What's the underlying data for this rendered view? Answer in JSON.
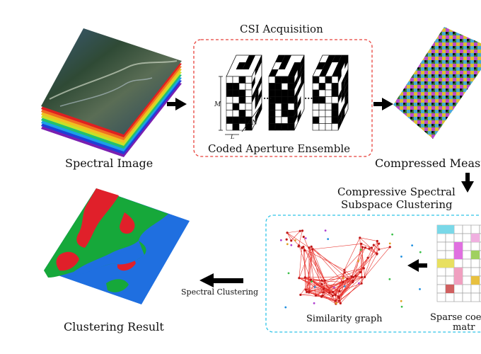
{
  "csi_title": "CSI Acquisition",
  "coded_aperture_label": "Coded Aperture Ensemble",
  "spectral_image_label": "Spectral Image",
  "compressed_label": "Compressed Measu",
  "cssc_title_line1": "Compressive Spectral",
  "cssc_title_line2": "Subspace Clustering",
  "similarity_label": "Similarity graph",
  "sparse_label_line1": "Sparse coe",
  "sparse_label_line2": "matr",
  "spectral_clustering_label": "Spectral Clustering",
  "clustering_result_label": "Clustering Result",
  "dim_M": "M",
  "dim_N": "N",
  "dim_L": "L",
  "ellipsis": "...",
  "colors": {
    "red_dash": "#e8403a",
    "cyan_dash": "#2ec4e8",
    "cluster_blue": "#1f6fe0",
    "cluster_green": "#16a83a",
    "cluster_red": "#e0202a",
    "graph_red": "#e8322c"
  }
}
